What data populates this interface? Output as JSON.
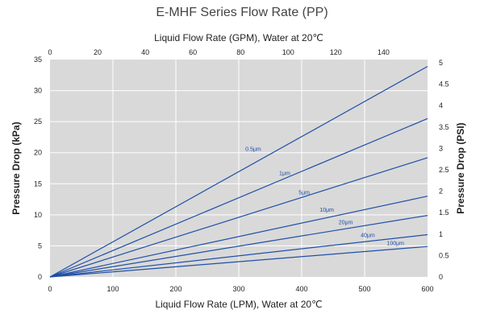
{
  "chart_data": {
    "type": "line",
    "title": "E-MHF Series Flow Rate (PP)",
    "xlabel": "Liquid Flow Rate (LPM), Water at 20℃",
    "x2label": "Liquid Flow Rate (GPM), Water at 20℃",
    "ylabel": "Pressure Drop (kPa)",
    "y2label": "Pressure Drop (PSI)",
    "xlim": [
      0,
      600
    ],
    "ylim": [
      0,
      35
    ],
    "x2lim": [
      0,
      158.5
    ],
    "y2lim": [
      0,
      5.076
    ],
    "xticks": [
      0,
      100,
      200,
      300,
      400,
      500,
      600
    ],
    "yticks": [
      0,
      5,
      10,
      15,
      20,
      25,
      30,
      35
    ],
    "x2ticks": [
      0,
      20,
      40,
      60,
      80,
      100,
      120,
      140
    ],
    "y2ticks": [
      "0",
      "0.5",
      "1",
      "1.5",
      "2",
      "2.5",
      "3",
      "3.5",
      "4",
      "4.5",
      "5"
    ],
    "grid": true,
    "colors": {
      "plot_bg": "#d9d9d9",
      "line": "#1f4fa8",
      "grid": "#ffffff"
    },
    "series": [
      {
        "name": "0.5μm",
        "x": [
          0,
          600
        ],
        "y": [
          0,
          33.9
        ]
      },
      {
        "name": "1μm",
        "x": [
          0,
          600
        ],
        "y": [
          0,
          25.5
        ]
      },
      {
        "name": "5μm",
        "x": [
          0,
          600
        ],
        "y": [
          0,
          19.2
        ]
      },
      {
        "name": "10μm",
        "x": [
          0,
          600
        ],
        "y": [
          0,
          13.0
        ]
      },
      {
        "name": "20μm",
        "x": [
          0,
          600
        ],
        "y": [
          0,
          9.9
        ]
      },
      {
        "name": "40μm",
        "x": [
          0,
          600
        ],
        "y": [
          0,
          6.8
        ]
      },
      {
        "name": "100μm",
        "x": [
          0,
          600
        ],
        "y": [
          0,
          4.9
        ]
      }
    ],
    "annotations": [
      {
        "text": "0.5μm",
        "x": 323,
        "y": 20.3
      },
      {
        "text": "1μm",
        "x": 373,
        "y": 16.4
      },
      {
        "text": "5μm",
        "x": 404,
        "y": 13.3
      },
      {
        "text": "10μm",
        "x": 440,
        "y": 10.5
      },
      {
        "text": "20μm",
        "x": 470,
        "y": 8.5
      },
      {
        "text": "40μm",
        "x": 505,
        "y": 6.4
      },
      {
        "text": "100μm",
        "x": 549,
        "y": 5.1
      }
    ]
  }
}
